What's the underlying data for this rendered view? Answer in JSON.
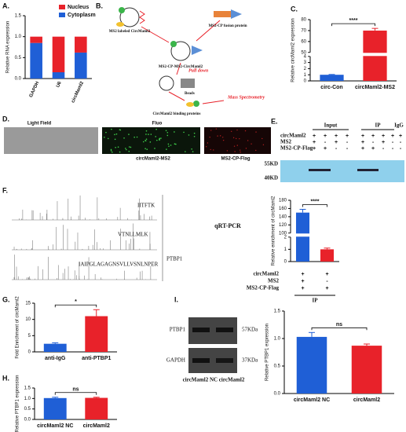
{
  "panel_labels": [
    "A.",
    "B.",
    "C.",
    "D.",
    "E.",
    "F.",
    "G.",
    "H.",
    "I."
  ],
  "chart_data": [
    {
      "type": "bar",
      "stacked": true,
      "ylabel": "Relative RNA expression",
      "categories": [
        "GAPDH",
        "U6",
        "circMaml2"
      ],
      "series": [
        {
          "name": "Nucleus",
          "color": "#e8222a",
          "values": [
            0.15,
            0.85,
            0.38
          ]
        },
        {
          "name": "Cytoplasm",
          "color": "#1f5fd6",
          "values": [
            0.85,
            0.15,
            0.62
          ]
        }
      ],
      "ylim": [
        0,
        1.5
      ],
      "yticks": [
        {
          "value": 0,
          "label": "0.0"
        },
        {
          "value": 0.5,
          "label": "0.5"
        },
        {
          "value": 1,
          "label": "1.0"
        },
        {
          "value": 1.5,
          "label": "1.5"
        }
      ]
    },
    {
      "type": "bar",
      "ylabel": "Relative circMaml2 expression",
      "categories": [
        "circ-Con",
        "circMaml2-MS2"
      ],
      "values": [
        1,
        70
      ],
      "errors": [
        0.05,
        2
      ],
      "colors": [
        "#1f5fd6",
        "#e8222a"
      ],
      "ylim": [
        0,
        80
      ],
      "axis_break": [
        4,
        50
      ],
      "yticks": [
        0,
        1,
        2,
        3,
        4,
        50,
        60,
        70,
        80
      ],
      "annotation": "****"
    },
    {
      "type": "bar",
      "ylabel": "Relative enrichment of circMaml2",
      "values": [
        150,
        1
      ],
      "errors": [
        8,
        0.1
      ],
      "colors": [
        "#1f5fd6",
        "#e8222a"
      ],
      "ylim": [
        0,
        180
      ],
      "axis_break": [
        2,
        100
      ],
      "yticks": [
        0,
        1,
        2,
        100,
        120,
        140,
        160,
        180
      ],
      "annotation": "****",
      "table": {
        "rows": [
          {
            "label": "circMaml2",
            "cells": [
              "+",
              "+"
            ]
          },
          {
            "label": "MS2",
            "cells": [
              "+",
              "-"
            ]
          },
          {
            "label": "MS2-CP-Flag",
            "cells": [
              "+",
              "+"
            ]
          }
        ],
        "footer": "IP"
      }
    },
    {
      "type": "bar",
      "ylabel": "Fold Enrichment of circMaml2",
      "categories": [
        "anti-IgG",
        "anti-PTBP1"
      ],
      "values": [
        2.5,
        11
      ],
      "errors": [
        0.3,
        2
      ],
      "colors": [
        "#1f5fd6",
        "#e8222a"
      ],
      "ylim": [
        0,
        15
      ],
      "yticks": [
        0,
        5,
        10,
        15
      ],
      "annotation": "*"
    },
    {
      "type": "bar",
      "ylabel": "Relative PTBP1 expression",
      "categories": [
        "circMaml2 NC",
        "circMaml2"
      ],
      "values": [
        1.02,
        1.03
      ],
      "errors": [
        0.04,
        0.03
      ],
      "colors": [
        "#1f5fd6",
        "#e8222a"
      ],
      "ylim": [
        0,
        1.5
      ],
      "yticks": [
        {
          "value": 0,
          "label": "0.0"
        },
        {
          "value": 0.5,
          "label": "0.5"
        },
        {
          "value": 1,
          "label": "1.0"
        },
        {
          "value": 1.5,
          "label": "1.5"
        }
      ],
      "annotation": "ns"
    },
    {
      "type": "bar",
      "ylabel": "Relative  PTBP1 expression",
      "categories": [
        "circMaml2 NC",
        "circMaml2"
      ],
      "values": [
        1.03,
        0.87
      ],
      "errors": [
        0.08,
        0.03
      ],
      "colors": [
        "#1f5fd6",
        "#e8222a"
      ],
      "ylim": [
        0,
        1.5
      ],
      "yticks": [
        {
          "value": 0,
          "label": "0.0"
        },
        {
          "value": 0.5,
          "label": "0.5"
        },
        {
          "value": 1,
          "label": "1.0"
        },
        {
          "value": 1.5,
          "label": "1.5"
        }
      ],
      "annotation": "ns"
    }
  ],
  "diagram_b": {
    "labeled": "MS2 labeled CircMaml2",
    "fusion": "MS2-CP fusion protein",
    "complex": "MS2-CP-MS2-CircMaml2",
    "pull": "Pull down",
    "beads": "Beads",
    "binding": "CircMaml2 binding proteins",
    "mass": "Mass Spectrometry"
  },
  "panel_d": {
    "top": [
      "Light Field",
      "Fluo"
    ],
    "bottom": [
      "circMaml2-MS2",
      "MS2-CP-Flag"
    ]
  },
  "panel_e": {
    "headers": [
      "Input",
      "IP",
      "IgG"
    ],
    "rows": [
      {
        "label": "circMaml2",
        "input": [
          "+",
          "+",
          "+",
          "+"
        ],
        "ip": [
          "+",
          "+",
          "+",
          "+"
        ],
        "igg": [
          "+"
        ]
      },
      {
        "label": "MS2",
        "input": [
          "+",
          "-",
          "+",
          "-"
        ],
        "ip": [
          "+",
          "-",
          "+",
          "-"
        ],
        "igg": [
          "-"
        ]
      },
      {
        "label": "MS2-CP-Flag",
        "input": [
          "+",
          "+",
          "-",
          "-"
        ],
        "ip": [
          "+",
          "+",
          "-",
          "-"
        ],
        "igg": [
          "-"
        ]
      }
    ],
    "markers": [
      "55KD",
      "40KD"
    ]
  },
  "panel_f": {
    "peptides": [
      "IITFTK",
      "VTNLLMLK",
      "IAIPGLAGAGNSVLLVSNLNPER"
    ],
    "protein": "PTBP1",
    "method": "qRT-PCR"
  },
  "panel_i": {
    "bands": [
      "PTBP1",
      "GAPDH"
    ],
    "sizes": [
      "57KDa",
      "37KDa"
    ],
    "lanes": "circMaml2 NC circMaml2"
  }
}
